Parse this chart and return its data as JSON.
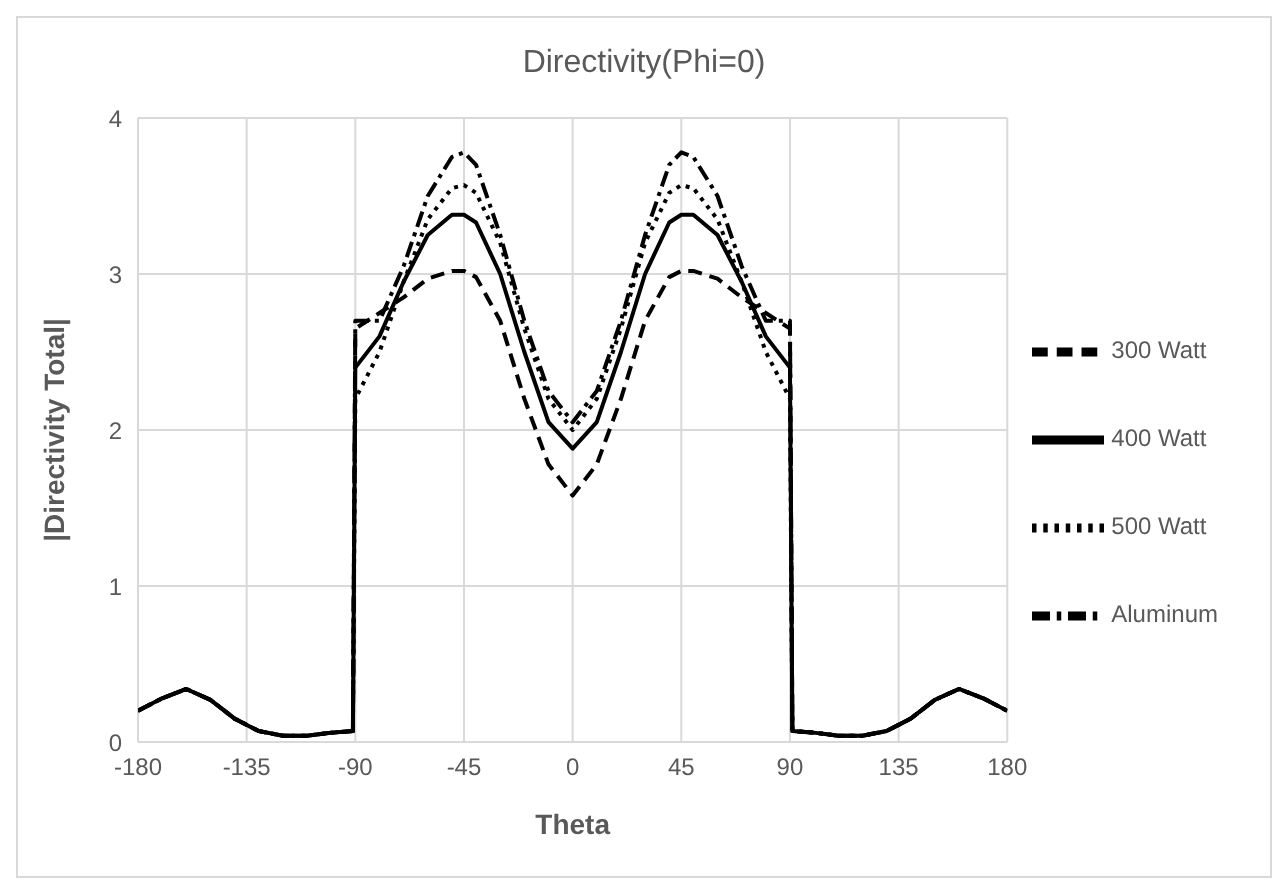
{
  "chart_data": {
    "type": "line",
    "title": "Directivity(Phi=0)",
    "xlabel": "Theta",
    "ylabel": "|Directivity Total|",
    "x": [
      -180,
      -170,
      -160,
      -150,
      -140,
      -130,
      -120,
      -110,
      -100,
      -91,
      -90,
      -80,
      -70,
      -60,
      -50,
      -45,
      -40,
      -30,
      -20,
      -10,
      0,
      10,
      20,
      30,
      40,
      45,
      50,
      60,
      70,
      80,
      90,
      91,
      100,
      110,
      120,
      130,
      140,
      150,
      160,
      170,
      180
    ],
    "series": [
      {
        "name": "300 Watt",
        "color": "#000000",
        "line_style": "dashed",
        "values": [
          0.2,
          0.28,
          0.34,
          0.27,
          0.15,
          0.07,
          0.04,
          0.04,
          0.06,
          0.07,
          2.65,
          2.75,
          2.85,
          2.97,
          3.02,
          3.02,
          2.98,
          2.7,
          2.2,
          1.78,
          1.58,
          1.78,
          2.2,
          2.7,
          2.98,
          3.02,
          3.02,
          2.97,
          2.85,
          2.75,
          2.65,
          0.07,
          0.06,
          0.04,
          0.04,
          0.07,
          0.15,
          0.27,
          0.34,
          0.28,
          0.2
        ]
      },
      {
        "name": "400 Watt",
        "color": "#000000",
        "line_style": "solid",
        "values": [
          0.2,
          0.28,
          0.34,
          0.27,
          0.15,
          0.07,
          0.04,
          0.04,
          0.06,
          0.07,
          2.4,
          2.6,
          2.95,
          3.25,
          3.38,
          3.38,
          3.33,
          3.0,
          2.5,
          2.05,
          1.88,
          2.05,
          2.5,
          3.0,
          3.33,
          3.38,
          3.38,
          3.25,
          2.95,
          2.6,
          2.4,
          0.07,
          0.06,
          0.04,
          0.04,
          0.07,
          0.15,
          0.27,
          0.34,
          0.28,
          0.2
        ]
      },
      {
        "name": "500 Watt",
        "color": "#000000",
        "line_style": "dotted",
        "values": [
          0.2,
          0.28,
          0.34,
          0.27,
          0.15,
          0.07,
          0.04,
          0.04,
          0.06,
          0.07,
          2.2,
          2.5,
          2.95,
          3.35,
          3.55,
          3.57,
          3.52,
          3.2,
          2.65,
          2.2,
          2.0,
          2.2,
          2.65,
          3.2,
          3.52,
          3.57,
          3.55,
          3.35,
          2.95,
          2.5,
          2.2,
          0.07,
          0.06,
          0.04,
          0.04,
          0.07,
          0.15,
          0.27,
          0.34,
          0.28,
          0.2
        ]
      },
      {
        "name": "Aluminum",
        "color": "#000000",
        "line_style": "dashdot",
        "values": [
          0.2,
          0.28,
          0.34,
          0.27,
          0.15,
          0.07,
          0.04,
          0.04,
          0.06,
          0.07,
          2.7,
          2.7,
          3.05,
          3.5,
          3.75,
          3.78,
          3.7,
          3.25,
          2.7,
          2.25,
          2.05,
          2.25,
          2.7,
          3.25,
          3.7,
          3.78,
          3.75,
          3.5,
          3.05,
          2.7,
          2.7,
          0.07,
          0.06,
          0.04,
          0.04,
          0.07,
          0.15,
          0.27,
          0.34,
          0.28,
          0.2
        ]
      }
    ],
    "xlim": [
      -180,
      180
    ],
    "xticks": [
      -180,
      -135,
      -90,
      -45,
      0,
      45,
      90,
      135,
      180
    ],
    "ylim": [
      0,
      4
    ],
    "yticks": [
      0,
      1,
      2,
      3,
      4
    ],
    "grid": true,
    "legend": "right",
    "marker": "none"
  }
}
